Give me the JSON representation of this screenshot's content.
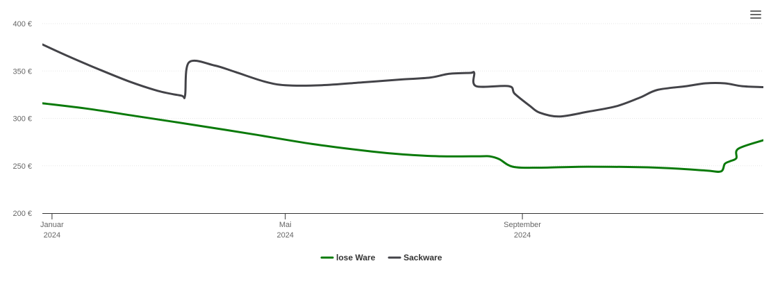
{
  "chart_data": {
    "type": "line",
    "x": [
      "2024-01-01",
      "2024-03-10",
      "2024-04-01",
      "2024-05-01",
      "2024-06-15",
      "2024-07-01",
      "2024-07-20",
      "2024-08-01",
      "2024-08-15",
      "2024-08-20",
      "2024-09-01",
      "2024-10-01",
      "2024-11-01",
      "2024-12-01",
      "2024-12-15",
      "2024-12-31"
    ],
    "x_ticks": [
      {
        "date": "2024-01-01",
        "label": "Januar",
        "label2": "2024"
      },
      {
        "date": "2024-05-01",
        "label": "Mai",
        "label2": "2024"
      },
      {
        "date": "2024-09-01",
        "label": "September",
        "label2": "2024"
      }
    ],
    "xlim": [
      "2023-12-27",
      "2025-01-04"
    ],
    "ylim": [
      200,
      400
    ],
    "y_ticks": [
      {
        "value": 200,
        "label": "200 €"
      },
      {
        "value": 250,
        "label": "250 €"
      },
      {
        "value": 300,
        "label": "300 €"
      },
      {
        "value": 350,
        "label": "350 €"
      },
      {
        "value": 400,
        "label": "400 €"
      }
    ],
    "grid": true,
    "legend_position": "bottom",
    "series": [
      {
        "name": "lose Ware",
        "color": "#0a7a0a",
        "points": [
          [
            "2023-12-27",
            316
          ],
          [
            "2024-01-20",
            310
          ],
          [
            "2024-02-15",
            302
          ],
          [
            "2024-03-15",
            293
          ],
          [
            "2024-04-15",
            283
          ],
          [
            "2024-05-15",
            273
          ],
          [
            "2024-06-15",
            265
          ],
          [
            "2024-07-01",
            262
          ],
          [
            "2024-07-20",
            260
          ],
          [
            "2024-08-10",
            260
          ],
          [
            "2024-08-15",
            260
          ],
          [
            "2024-08-20",
            257
          ],
          [
            "2024-08-27",
            249
          ],
          [
            "2024-09-10",
            248
          ],
          [
            "2024-10-05",
            249
          ],
          [
            "2024-11-10",
            248
          ],
          [
            "2024-12-05",
            245
          ],
          [
            "2024-12-13",
            244
          ],
          [
            "2024-12-15",
            252
          ],
          [
            "2024-12-18",
            255
          ],
          [
            "2024-12-21",
            258
          ],
          [
            "2024-12-22",
            268
          ],
          [
            "2025-01-04",
            277
          ]
        ]
      },
      {
        "name": "Sackware",
        "color": "#434348",
        "points": [
          [
            "2023-12-27",
            378
          ],
          [
            "2024-01-10",
            365
          ],
          [
            "2024-01-25",
            352
          ],
          [
            "2024-02-10",
            339
          ],
          [
            "2024-02-25",
            329
          ],
          [
            "2024-03-08",
            324
          ],
          [
            "2024-03-10",
            324
          ],
          [
            "2024-03-12",
            359
          ],
          [
            "2024-03-25",
            356
          ],
          [
            "2024-04-05",
            349
          ],
          [
            "2024-04-20",
            339
          ],
          [
            "2024-05-01",
            335
          ],
          [
            "2024-05-20",
            335
          ],
          [
            "2024-06-10",
            338
          ],
          [
            "2024-06-30",
            341
          ],
          [
            "2024-07-15",
            343
          ],
          [
            "2024-07-25",
            347
          ],
          [
            "2024-08-05",
            348
          ],
          [
            "2024-08-07",
            348
          ],
          [
            "2024-08-08",
            334
          ],
          [
            "2024-08-25",
            334
          ],
          [
            "2024-08-28",
            326
          ],
          [
            "2024-09-05",
            313
          ],
          [
            "2024-09-10",
            306
          ],
          [
            "2024-09-20",
            302
          ],
          [
            "2024-10-05",
            307
          ],
          [
            "2024-10-20",
            313
          ],
          [
            "2024-11-01",
            322
          ],
          [
            "2024-11-10",
            330
          ],
          [
            "2024-11-25",
            334
          ],
          [
            "2024-12-05",
            337
          ],
          [
            "2024-12-15",
            337
          ],
          [
            "2024-12-24",
            334
          ],
          [
            "2025-01-04",
            333
          ]
        ]
      }
    ]
  },
  "toolbar": {
    "menu_icon": "hamburger-menu-icon"
  }
}
